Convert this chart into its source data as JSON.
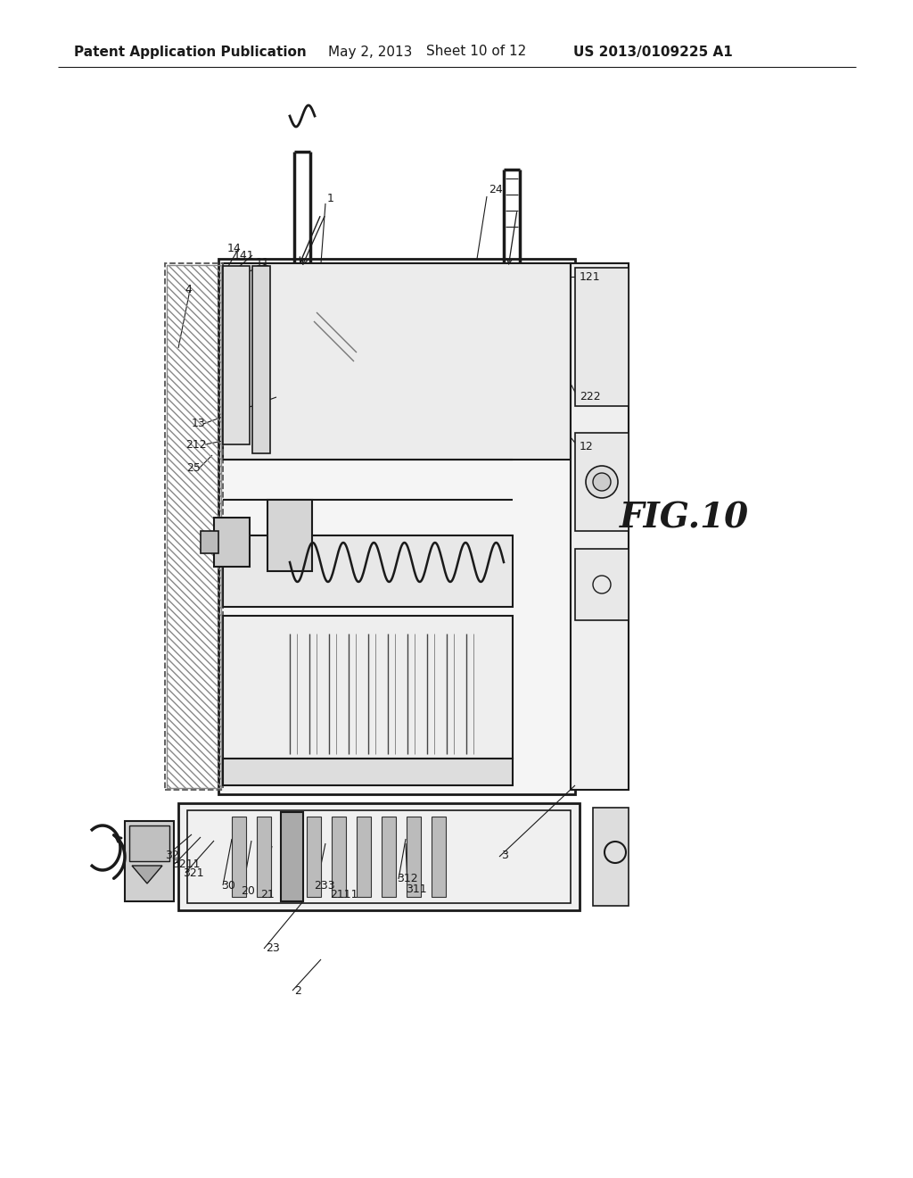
{
  "bg_color": "#ffffff",
  "header_text": "Patent Application Publication",
  "header_date": "May 2, 2013",
  "header_sheet": "Sheet 10 of 12",
  "header_patent": "US 2013/0109225 A1",
  "fig_label": "FIG.10",
  "fig_label_fontsize": 28,
  "title_fontsize": 11,
  "label_fontsize": 9
}
